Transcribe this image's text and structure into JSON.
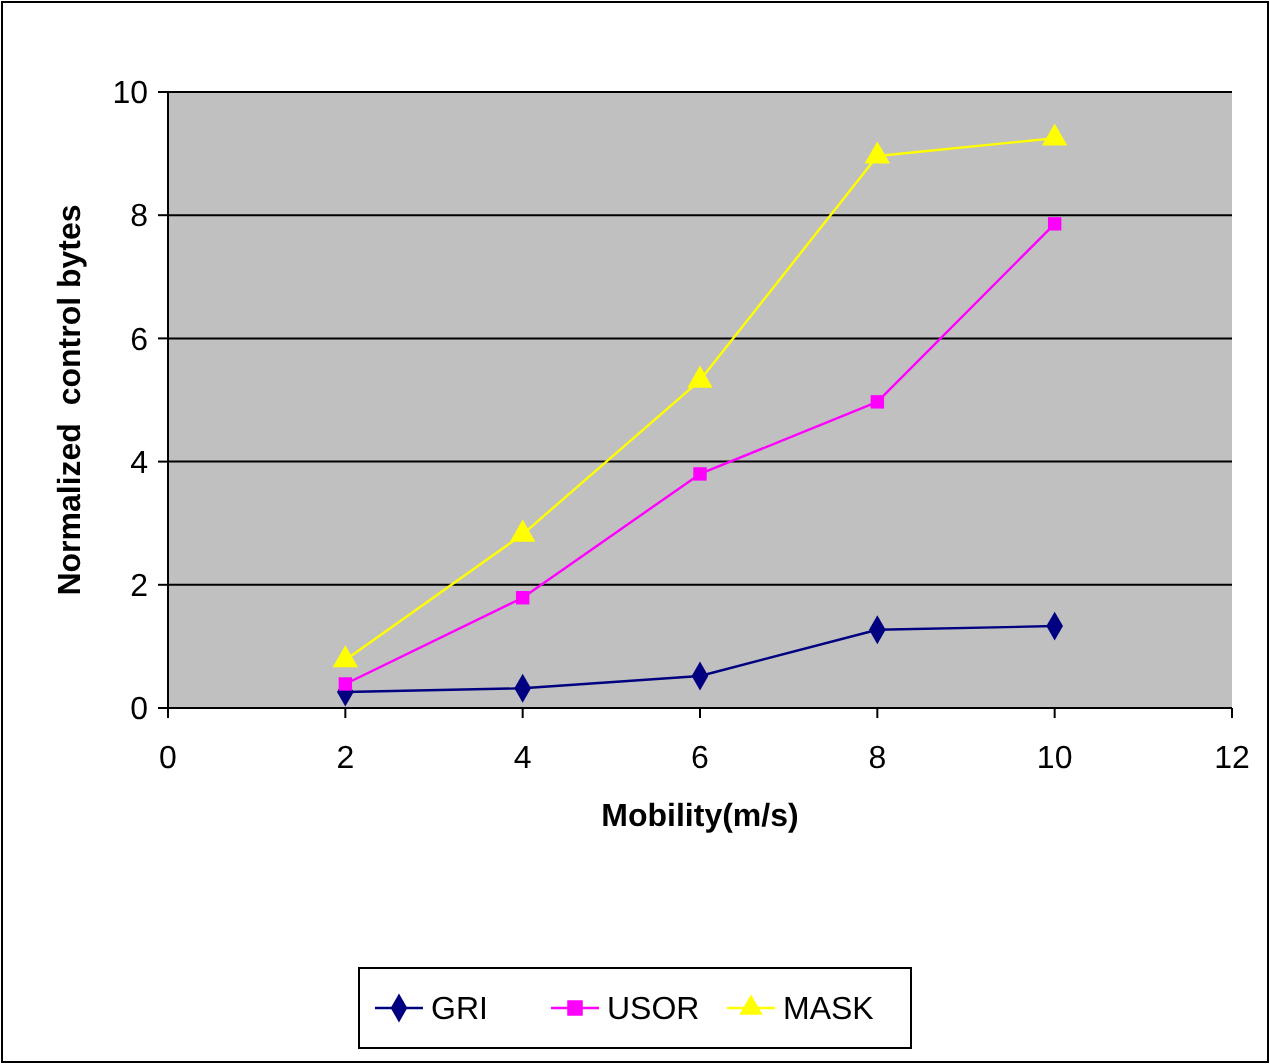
{
  "chart_data": {
    "type": "line",
    "xlabel": "Mobility(m/s)",
    "ylabel": "Normalized  control bytes",
    "x": [
      2,
      4,
      6,
      8,
      10
    ],
    "xlim": [
      0,
      12
    ],
    "xticks": [
      0,
      2,
      4,
      6,
      8,
      10,
      12
    ],
    "ylim": [
      0,
      10
    ],
    "yticks": [
      0,
      2,
      4,
      6,
      8,
      10
    ],
    "grid": "y",
    "legend": "bottom",
    "series": [
      {
        "name": "GRI",
        "color": "#000080",
        "marker": "diamond",
        "values": [
          0.26,
          0.32,
          0.52,
          1.27,
          1.33
        ]
      },
      {
        "name": "USOR",
        "color": "#ff00ff",
        "marker": "square",
        "values": [
          0.39,
          1.79,
          3.8,
          4.97,
          7.86
        ]
      },
      {
        "name": "MASK",
        "color": "#ffff00",
        "marker": "triangle",
        "values": [
          0.78,
          2.82,
          5.32,
          8.96,
          9.25
        ]
      }
    ]
  }
}
